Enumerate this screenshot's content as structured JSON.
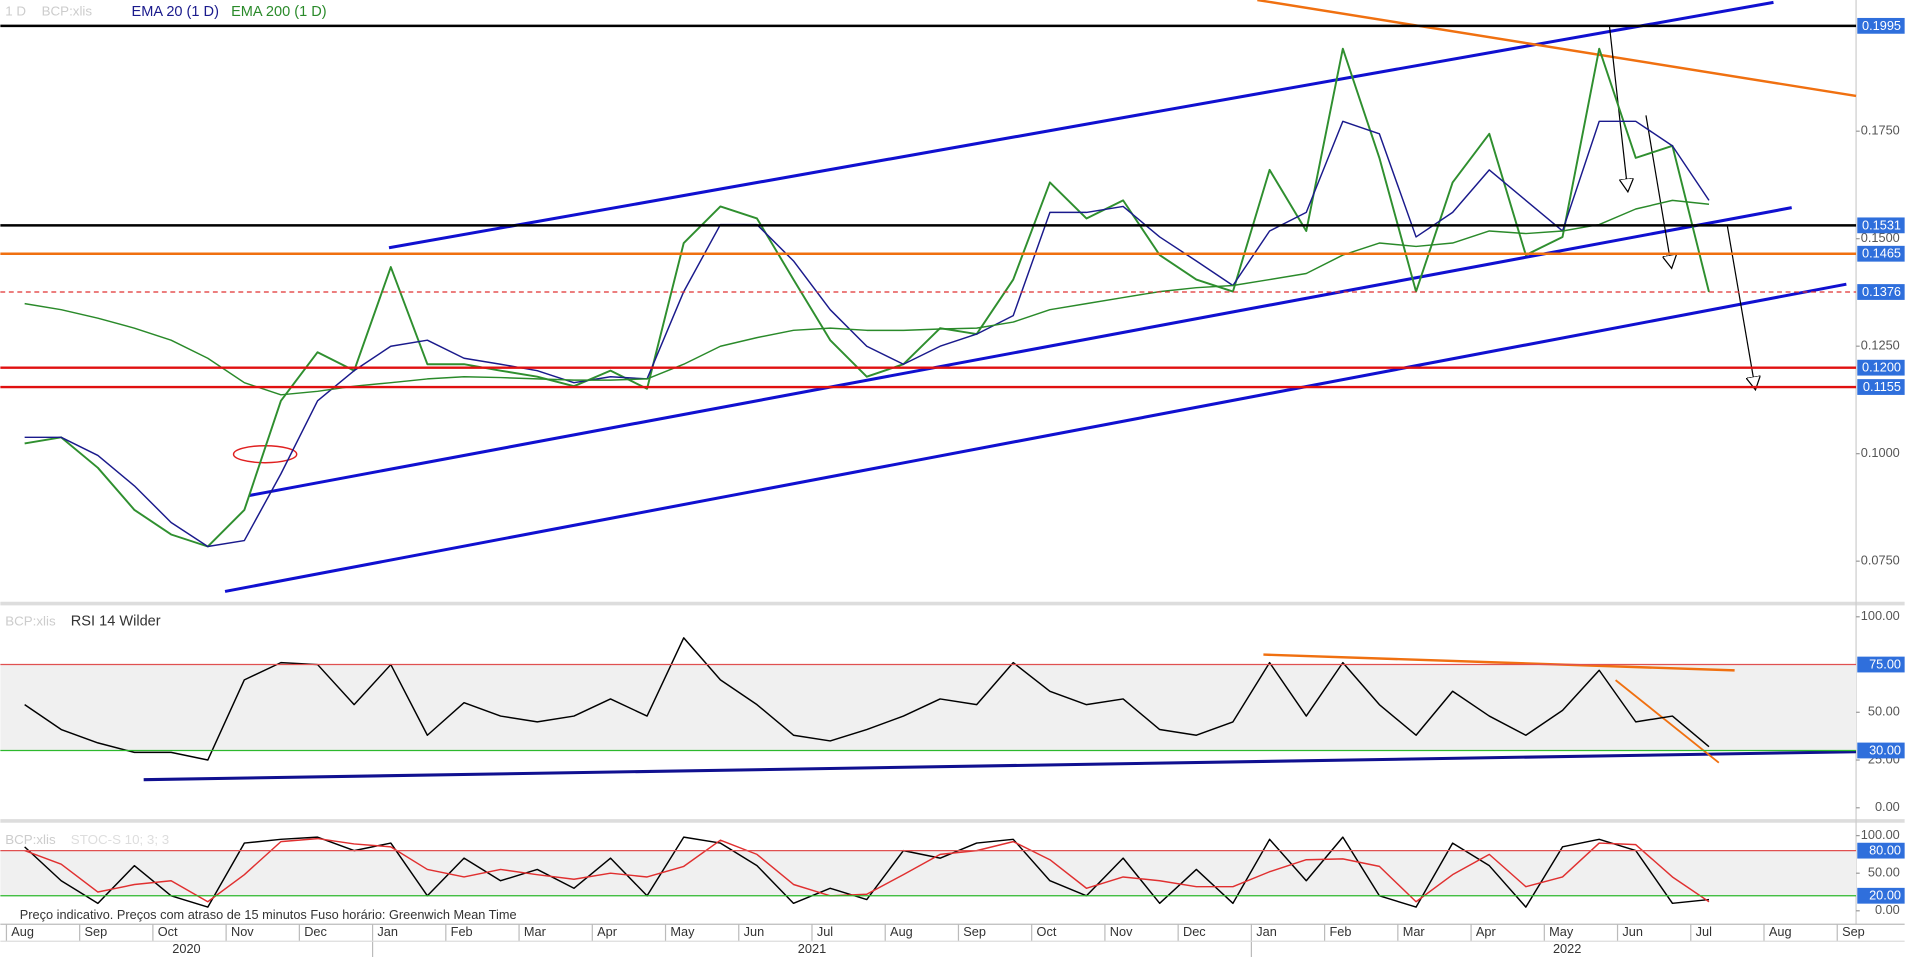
{
  "chart_data": [
    {
      "type": "line",
      "interval": "1 D",
      "symbol": "BCP:xlis",
      "categories": [
        "Aug",
        null,
        "Sep",
        null,
        "Oct",
        null,
        "Nov",
        null,
        "Dec",
        null,
        "Jan",
        null,
        "Feb",
        null,
        "Mar",
        null,
        "Apr",
        null,
        "May",
        null,
        "Jun",
        null,
        "Jul",
        null,
        "Aug",
        null,
        "Sep",
        null,
        "Oct",
        null,
        "Nov",
        null,
        "Dec",
        null,
        "Jan",
        null,
        "Feb",
        null,
        "Mar",
        null,
        "Apr",
        null,
        "May",
        null,
        "Jun",
        null,
        "Jul",
        null,
        "Aug",
        null,
        "Sep",
        null
      ],
      "years": [
        "2020",
        "2021",
        "2022"
      ],
      "series": [
        {
          "color": "#2f8f2f",
          "values": [
            0.1024,
            0.1038,
            0.0967,
            0.0869,
            0.0812,
            0.0784,
            0.0869,
            0.1123,
            0.1236,
            0.1193,
            0.1434,
            0.1208,
            0.1208,
            0.1193,
            0.1179,
            0.1157,
            0.1193,
            0.1151,
            0.149,
            0.1575,
            0.1547,
            0.1405,
            0.1264,
            0.1179,
            0.1208,
            0.1292,
            0.1278,
            0.1405,
            0.1631,
            0.1547,
            0.1589,
            0.1462,
            0.1405,
            0.1377,
            0.166,
            0.1518,
            0.1942,
            0.1688,
            0.1377,
            0.1631,
            0.1744,
            0.1462,
            0.1504,
            0.1942,
            0.1688,
            0.1716,
            0.1376,
            null,
            null,
            null,
            null,
            null
          ]
        },
        {
          "name": "EMA 20  (1 D)",
          "color": "#1a1a8c",
          "values": [
            0.1038,
            0.1038,
            0.0996,
            0.0925,
            0.084,
            0.0784,
            0.0798,
            0.0953,
            0.1123,
            0.1193,
            0.125,
            0.1264,
            0.1222,
            0.1208,
            0.1193,
            0.1165,
            0.1179,
            0.1174,
            0.1377,
            0.1533,
            0.1533,
            0.1448,
            0.1335,
            0.125,
            0.1208,
            0.125,
            0.1278,
            0.1321,
            0.1561,
            0.1561,
            0.1575,
            0.1504,
            0.1448,
            0.1391,
            0.1518,
            0.1561,
            0.1773,
            0.1744,
            0.1504,
            0.1561,
            0.166,
            0.1589,
            0.1518,
            0.1773,
            0.1773,
            0.1716,
            0.1589,
            null,
            null,
            null,
            null,
            null
          ]
        },
        {
          "name": "EMA 200  (1 D)",
          "color": "#2a8a2a",
          "values": [
            0.1349,
            0.1335,
            0.1315,
            0.1292,
            0.1264,
            0.1222,
            0.1165,
            0.1137,
            0.1145,
            0.1157,
            0.1165,
            0.1174,
            0.1179,
            0.1177,
            0.1174,
            0.1171,
            0.1171,
            0.1174,
            0.1208,
            0.125,
            0.127,
            0.1287,
            0.1292,
            0.1287,
            0.1287,
            0.129,
            0.1292,
            0.1306,
            0.1335,
            0.1349,
            0.1363,
            0.1377,
            0.1386,
            0.1391,
            0.1405,
            0.1419,
            0.1462,
            0.149,
            0.1482,
            0.149,
            0.1518,
            0.1512,
            0.1518,
            0.1533,
            0.1569,
            0.1589,
            0.158,
            null,
            null,
            null,
            null,
            null
          ]
        }
      ],
      "ylim": [
        0.0657,
        0.2041
      ],
      "yticks": [
        {
          "value": 0.075,
          "label": "0.0750"
        },
        {
          "value": 0.1,
          "label": "0.1000"
        },
        {
          "value": 0.125,
          "label": "0.1250"
        },
        {
          "value": 0.15,
          "label": "0.1500"
        },
        {
          "value": 0.175,
          "label": "0.1750"
        }
      ],
      "levels": [
        {
          "value": 0.1995,
          "color": "#000000"
        },
        {
          "value": 0.1531,
          "color": "#000000"
        },
        {
          "value": 0.1465,
          "color": "#f07010"
        },
        {
          "value": 0.1376,
          "color": "#e03030",
          "dashed": true
        },
        {
          "value": 0.12,
          "label": "0.1200",
          "color": "#e01010"
        },
        {
          "value": 0.1155,
          "label": "0.1155",
          "color": "#e01010"
        }
      ],
      "label_box_color": "#2f6fdc",
      "note": "Preço indicativo. Preços com atraso de 15 minutos   Fuso horário: Greenwich Mean Time"
    },
    {
      "type": "line",
      "symbol": "BCP:xlis",
      "title": "RSI 14 Wilder",
      "series": [
        {
          "color": "#000000",
          "values": [
            54,
            41,
            34,
            29,
            29,
            25,
            67,
            76,
            75,
            54,
            75,
            38,
            55,
            48,
            45,
            48,
            57,
            48,
            89,
            67,
            54,
            38,
            35,
            41,
            48,
            57,
            54,
            76,
            61,
            54,
            57,
            41,
            38,
            45,
            76,
            48,
            76,
            54,
            38,
            61,
            48,
            38,
            51,
            72,
            45,
            48,
            32,
            null,
            null,
            null,
            null,
            null
          ]
        }
      ],
      "ylim": [
        -5,
        105
      ],
      "yticks": [
        {
          "value": 0,
          "label": "0.00"
        },
        {
          "value": 25,
          "label": "25.00"
        },
        {
          "value": 50,
          "label": "50.00"
        },
        {
          "value": 100,
          "label": "100.00"
        }
      ],
      "levels": [
        {
          "value": 75,
          "label": "75.00",
          "color": "#e05050"
        },
        {
          "value": 30,
          "label": "30.00",
          "color": "#2db82d"
        }
      ],
      "band": "#f0f0f0",
      "label_box_color": "#2f6fdc"
    },
    {
      "type": "line",
      "symbol": "BCP:xlis",
      "title": "STOC-S 10; 3; 3",
      "series": [
        {
          "color": "#000000",
          "values": [
            85,
            40,
            10,
            60,
            20,
            5,
            90,
            95,
            98,
            80,
            90,
            20,
            70,
            40,
            55,
            30,
            70,
            20,
            98,
            90,
            60,
            10,
            30,
            15,
            80,
            70,
            90,
            95,
            40,
            20,
            70,
            10,
            55,
            10,
            95,
            40,
            98,
            20,
            5,
            90,
            60,
            5,
            85,
            95,
            80,
            10,
            15,
            null,
            null,
            null,
            null,
            null
          ]
        },
        {
          "color": "#e03030",
          "values": [
            80,
            62,
            25,
            35,
            40,
            12,
            48,
            92,
            96,
            89,
            85,
            55,
            45,
            55,
            48,
            42,
            50,
            45,
            59,
            94,
            75,
            35,
            20,
            22,
            48,
            75,
            80,
            92,
            68,
            30,
            45,
            40,
            32,
            32,
            52,
            68,
            69,
            59,
            12,
            48,
            75,
            32,
            45,
            90,
            88,
            45,
            12,
            null,
            null,
            null,
            null,
            null
          ]
        }
      ],
      "ylim": [
        -13,
        113
      ],
      "yticks": [
        {
          "value": 0,
          "label": "0.00"
        },
        {
          "value": 50,
          "label": "50.00"
        },
        {
          "value": 100,
          "label": "100.00"
        }
      ],
      "levels": [
        {
          "value": 80,
          "label": "80.00",
          "color": "#e05050"
        },
        {
          "value": 20,
          "label": "20.00",
          "color": "#2db82d"
        }
      ],
      "band": "#f0f0f0",
      "label_box_color": "#2f6fdc"
    }
  ]
}
